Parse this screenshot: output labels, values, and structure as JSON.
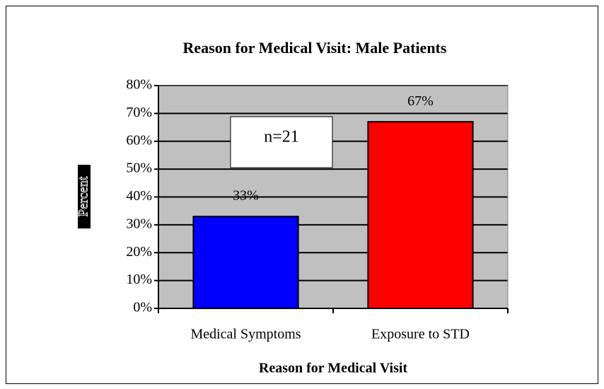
{
  "chart_data": {
    "type": "bar",
    "title": "Reason for Medical Visit:  Male Patients",
    "x_label": "Reason for Medical Visit",
    "y_label": "Percent",
    "annotation": "n=21",
    "categories": [
      "Medical Symptoms",
      "Exposure to STD"
    ],
    "values": [
      33,
      67
    ],
    "value_labels": [
      "33%",
      "67%"
    ],
    "colors": [
      "#0000ff",
      "#ff0000"
    ],
    "ylim": [
      0,
      80
    ],
    "yticks": [
      {
        "value": 0,
        "label": "0%"
      },
      {
        "value": 10,
        "label": "10%"
      },
      {
        "value": 20,
        "label": "20%"
      },
      {
        "value": 30,
        "label": "30%"
      },
      {
        "value": 40,
        "label": "40%"
      },
      {
        "value": 50,
        "label": "50%"
      },
      {
        "value": 60,
        "label": "60%"
      },
      {
        "value": 70,
        "label": "70%"
      },
      {
        "value": 80,
        "label": "80%"
      }
    ],
    "grid": true,
    "background": "#c0c0c0"
  }
}
